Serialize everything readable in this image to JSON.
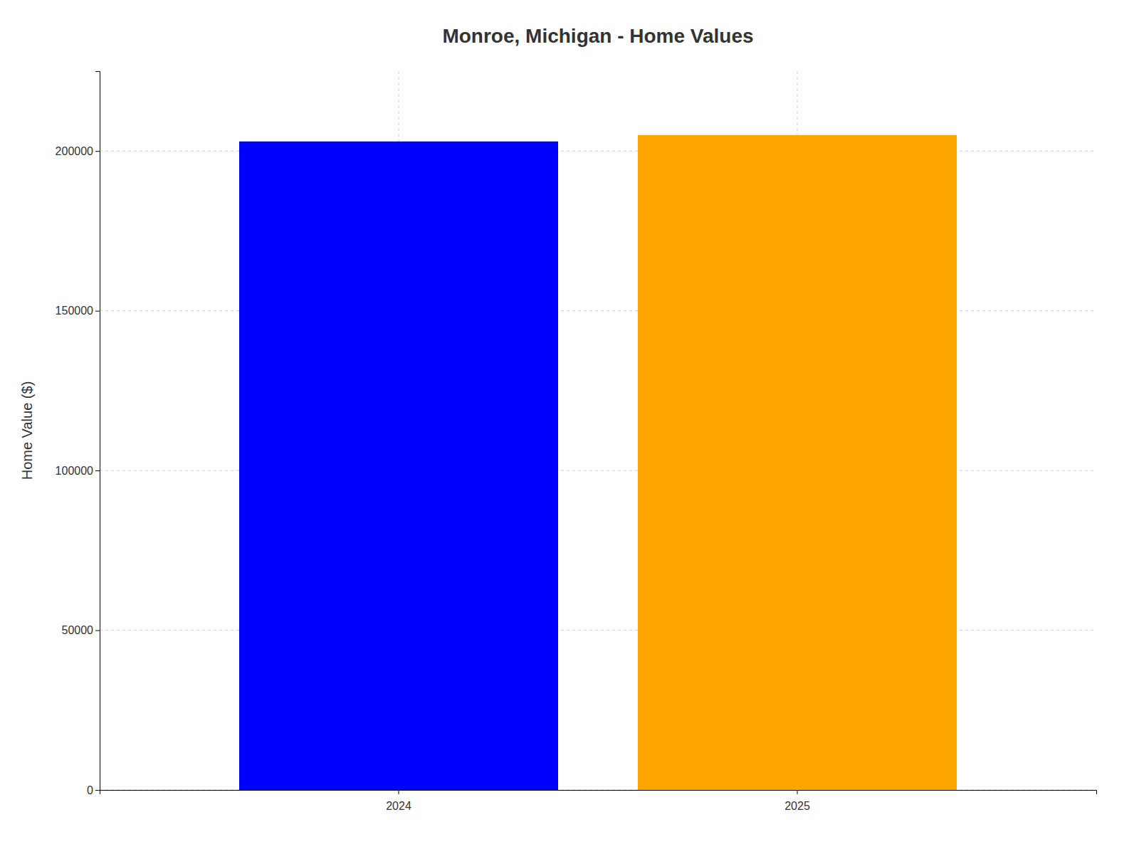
{
  "chart_data": {
    "type": "bar",
    "title": "Monroe, Michigan - Home Values",
    "categories": [
      "2024",
      "2025"
    ],
    "values": [
      203000,
      205000
    ],
    "colors": [
      "#0000ff",
      "#ffa500"
    ],
    "ylabel": "Home Value ($)",
    "ylim": [
      0,
      225000
    ],
    "yticks": [
      0,
      50000,
      100000,
      150000,
      200000
    ],
    "grid": true
  }
}
